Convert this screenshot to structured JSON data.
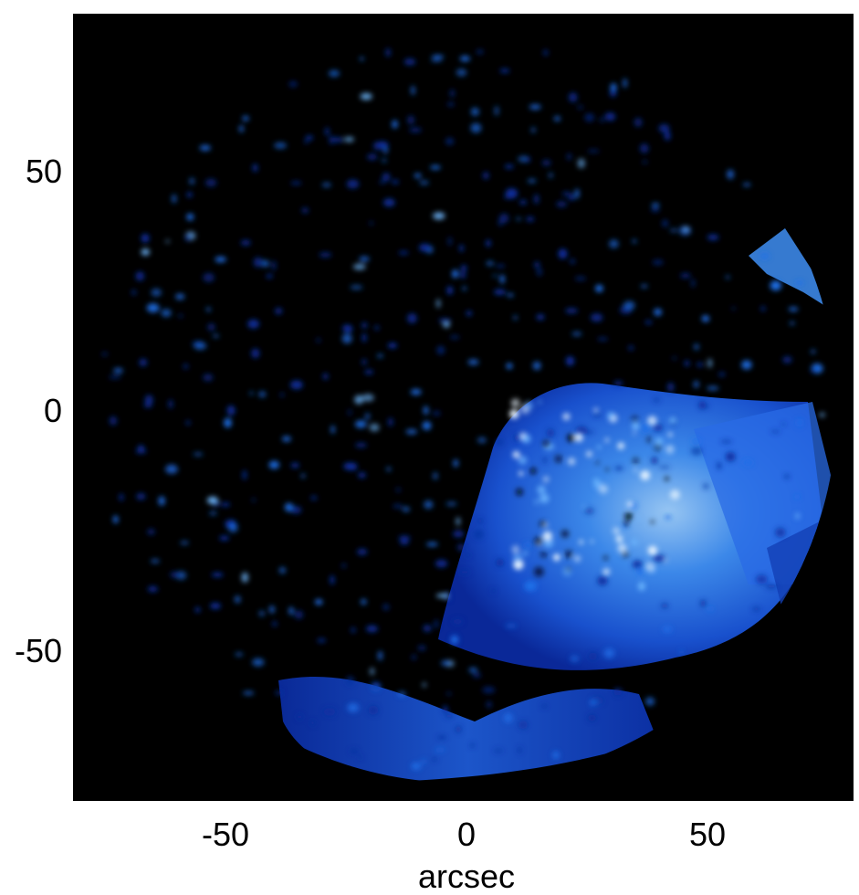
{
  "image": {
    "description_free": true,
    "colormap": [
      "#000000",
      "#0a2fa0",
      "#1f6fe8",
      "#6fb8ff",
      "#e8f4ff"
    ],
    "background": "#000000"
  },
  "axes": {
    "xlabel": "arcsec",
    "xticks": [
      "-50",
      "0",
      "50"
    ],
    "yticks": [
      "50",
      "0",
      "-50"
    ]
  }
}
